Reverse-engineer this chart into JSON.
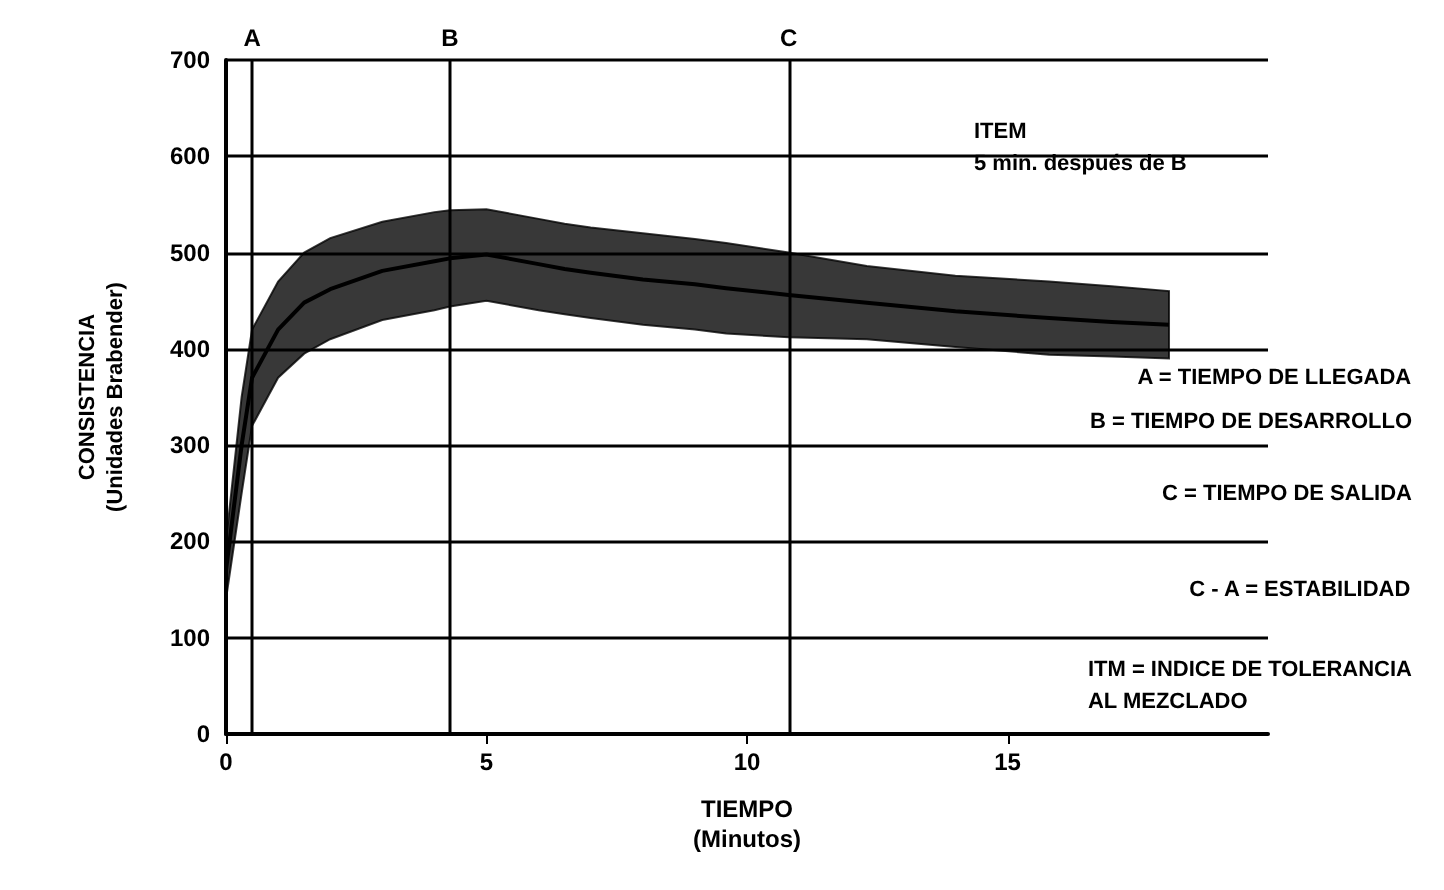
{
  "chart_data": {
    "type": "line",
    "xlabel": "TIEMPO\n(Minutos)",
    "ylabel": "CONSISTENCIA\n(Unidades Brabender)",
    "xlim": [
      0,
      20
    ],
    "xticks": [
      0,
      5,
      10,
      15
    ],
    "ylim": [
      0,
      700
    ],
    "yticks": [
      0,
      100,
      200,
      300,
      400,
      500,
      600,
      700
    ],
    "grid": "y",
    "x": [
      0,
      0.3,
      0.5,
      1,
      1.5,
      2,
      3,
      4,
      4.3,
      5,
      6,
      6.5,
      7,
      8,
      9,
      9.6,
      10.8,
      12.3,
      14,
      15.8,
      17,
      18.1
    ],
    "series": [
      {
        "color": "#000000",
        "values": [
          170,
          300,
          370,
          420,
          448,
          462,
          481,
          491,
          494,
          498,
          488,
          483,
          479,
          472,
          467,
          463,
          456,
          448,
          439,
          432,
          428,
          425
        ],
        "lower": [
          140,
          250,
          320,
          370,
          395,
          410,
          430,
          440,
          444,
          450,
          440,
          436,
          432,
          425,
          420,
          416,
          412,
          410,
          402,
          394,
          392,
          390
        ],
        "upper": [
          200,
          350,
          420,
          470,
          500,
          515,
          532,
          542,
          544,
          545,
          535,
          530,
          526,
          520,
          514,
          510,
          500,
          486,
          476,
          470,
          465,
          460
        ]
      }
    ],
    "ref_lines": [
      {
        "axis": "x",
        "value": 0.5,
        "label": "A"
      },
      {
        "axis": "x",
        "value": 4.3,
        "label": "B"
      },
      {
        "axis": "x",
        "value": 10.8,
        "label": "C"
      }
    ],
    "annotations": [
      "ITEM\n5 min. después de B",
      "A = TIEMPO DE LLEGADA",
      "B = TIEMPO DE DESARROLLO",
      "C = TIEMPO DE SALIDA",
      "C - A = ESTABILIDAD",
      "ITM = INDICE DE TOLERANCIA\nAL MEZCLADO"
    ]
  }
}
